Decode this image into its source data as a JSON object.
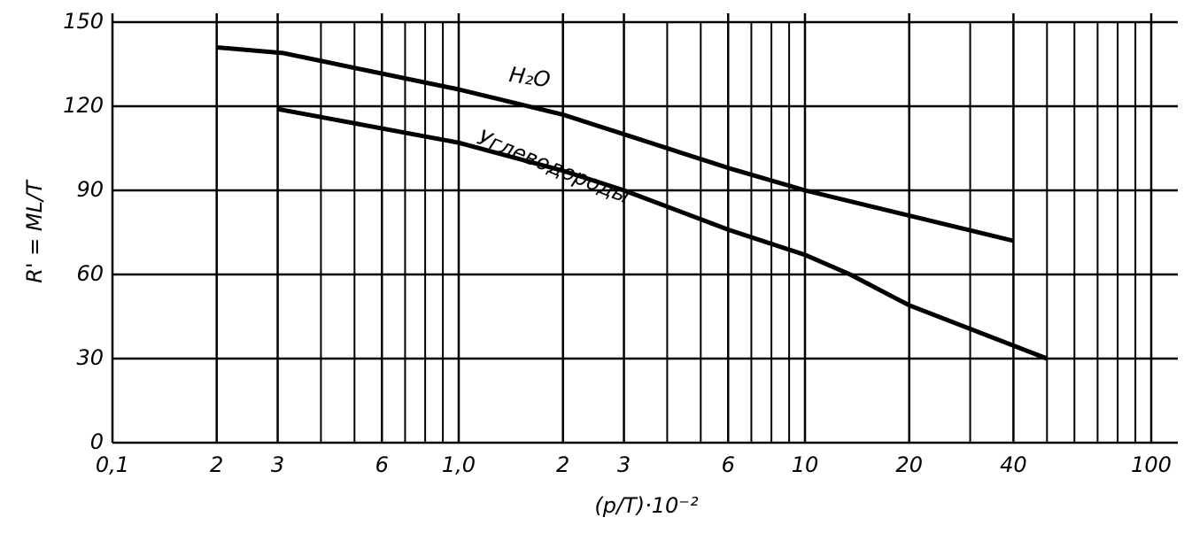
{
  "chart_data": {
    "type": "line",
    "x_label": "(p/T)·10⁻²",
    "y_label": "R' = ML/T",
    "xscale": "log",
    "grid": true,
    "xlim": [
      0.1,
      100
    ],
    "ylim": [
      0,
      150
    ],
    "xticks": [
      {
        "value": 0.1,
        "label": "0,1"
      },
      {
        "value": 0.2,
        "label": "2"
      },
      {
        "value": 0.3,
        "label": "3"
      },
      {
        "value": 0.6,
        "label": "6"
      },
      {
        "value": 1,
        "label": "1,0"
      },
      2,
      3,
      6,
      10,
      20,
      40,
      100
    ],
    "yticks": [
      0,
      30,
      60,
      90,
      120,
      150
    ],
    "series": [
      {
        "name": "H₂O",
        "color": "#000000",
        "x": [
          0.2,
          0.31,
          1,
          2,
          3,
          6,
          10,
          20,
          40
        ],
        "values": [
          141,
          139,
          126,
          117,
          110,
          98,
          90,
          81,
          72
        ]
      },
      {
        "name": "Углеводороды",
        "color": "#000000",
        "x": [
          0.3,
          1,
          2,
          3,
          6,
          10,
          13.5,
          20,
          50
        ],
        "values": [
          119,
          107,
          97,
          90,
          76,
          67,
          60,
          49,
          30
        ]
      }
    ]
  }
}
